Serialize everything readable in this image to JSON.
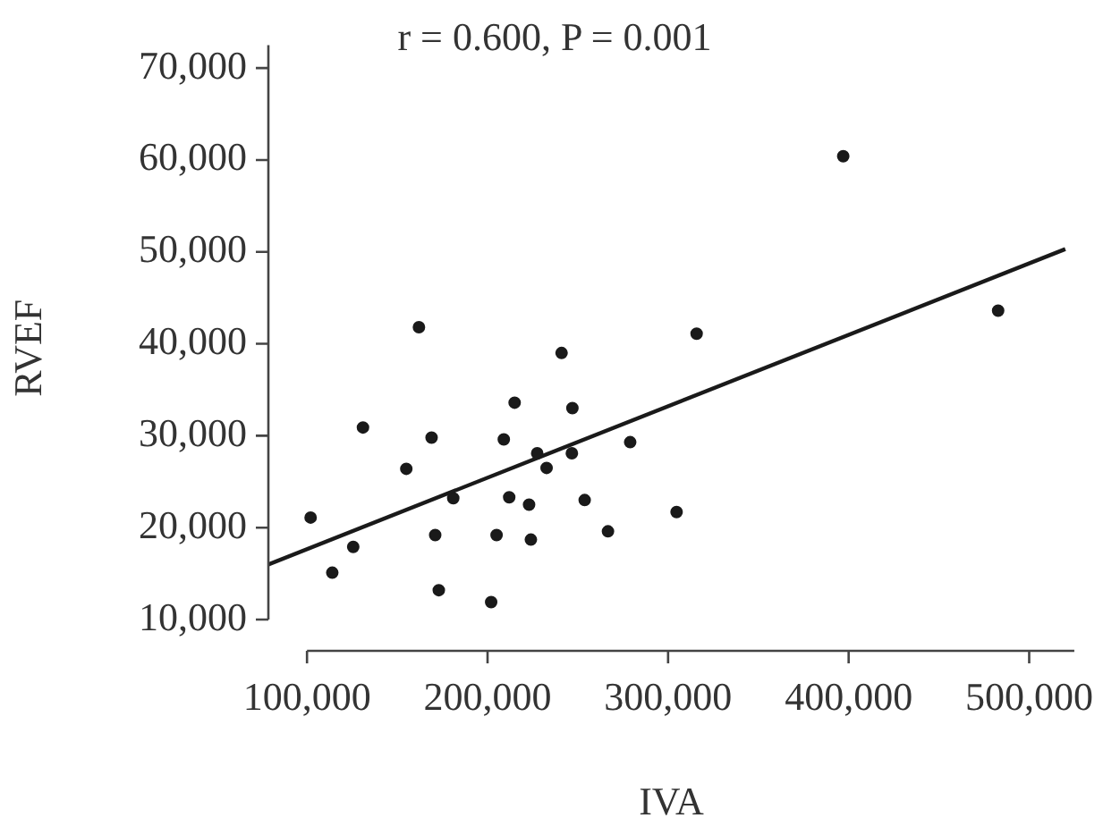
{
  "chart_data": {
    "type": "scatter",
    "xlabel": "IVA",
    "ylabel": "RVEF",
    "annotations": [
      "r = 0.600, P = 0.001"
    ],
    "xlim": [
      78600,
      525000
    ],
    "xticks": [
      {
        "value": 100000,
        "label": "100,000"
      },
      {
        "value": 200000,
        "label": "200,000"
      },
      {
        "value": 300000,
        "label": "300,000"
      },
      {
        "value": 400000,
        "label": "400,000"
      },
      {
        "value": 500000,
        "label": "500,000"
      }
    ],
    "ylim": [
      6600,
      72500
    ],
    "yticks": [
      {
        "value": 10000,
        "label": "10,000"
      },
      {
        "value": 20000,
        "label": "20,000"
      },
      {
        "value": 30000,
        "label": "30,000"
      },
      {
        "value": 40000,
        "label": "40,000"
      },
      {
        "value": 50000,
        "label": "50,000"
      },
      {
        "value": 60000,
        "label": "60,000"
      },
      {
        "value": 70000,
        "label": "70,000"
      }
    ],
    "grid": false,
    "legend": false,
    "marker": "circle",
    "series": [
      {
        "type": "scatter",
        "color": "#1a1a1a",
        "x": [
          102000,
          114000,
          125600,
          131000,
          155000,
          162000,
          169000,
          171000,
          173000,
          181000,
          202000,
          205000,
          209000,
          212000,
          215000,
          223000,
          224000,
          227500,
          232700,
          241000,
          246700,
          247000,
          253800,
          266700,
          279000,
          304700,
          315800,
          397000,
          482800
        ],
        "values": [
          21100,
          15100,
          17900,
          30900,
          26400,
          41800,
          29800,
          19200,
          13200,
          23200,
          11900,
          19200,
          29600,
          23300,
          33600,
          22500,
          18700,
          28100,
          26500,
          39000,
          28100,
          33000,
          23000,
          19600,
          29300,
          21700,
          41100,
          60400,
          43600
        ]
      },
      {
        "type": "line",
        "color": "#1a1a1a",
        "marker": "none",
        "line_style": "solid",
        "x": [
          78600,
          520000
        ],
        "values": [
          16000,
          50300
        ]
      }
    ]
  }
}
